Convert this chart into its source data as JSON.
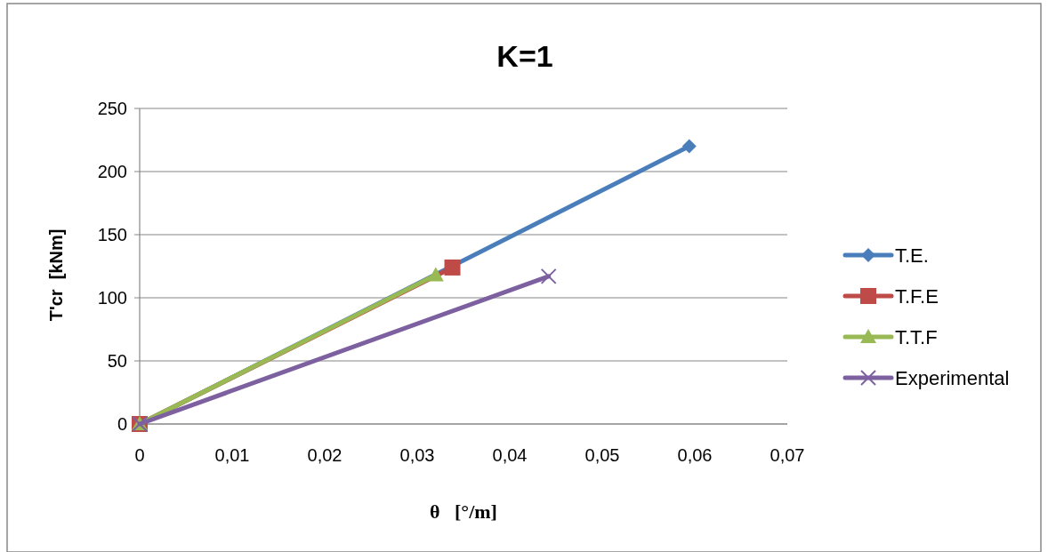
{
  "chart_data": {
    "type": "line",
    "title": "K=1",
    "xlabel": "θ   [°/m]",
    "ylabel": "T'cr  [kNm]",
    "xlim": [
      0,
      0.07
    ],
    "xticks": [
      0,
      {
        "value": 0.01,
        "label": "0,01"
      },
      {
        "value": 0.02,
        "label": "0,02"
      },
      {
        "value": 0.03,
        "label": "0,03"
      },
      {
        "value": 0.04,
        "label": "0,04"
      },
      {
        "value": 0.05,
        "label": "0,05"
      },
      {
        "value": 0.06,
        "label": "0,06"
      },
      {
        "value": 0.07,
        "label": "0,07"
      }
    ],
    "ylim": [
      0,
      250
    ],
    "yticks": [
      0,
      50,
      100,
      150,
      200,
      250
    ],
    "grid": "y",
    "legend": "right",
    "series": [
      {
        "name": "T.E.",
        "color": "#4a7ebb",
        "marker": "diamond",
        "x": [
          0,
          0.0594
        ],
        "values": [
          0,
          220
        ]
      },
      {
        "name": "T.F.E",
        "color": "#be4b48",
        "marker": "square",
        "x": [
          0,
          0.0338
        ],
        "values": [
          0,
          124
        ]
      },
      {
        "name": "T.T.F",
        "color": "#98b954",
        "marker": "triangle",
        "x": [
          0,
          0.032
        ],
        "values": [
          0,
          118
        ]
      },
      {
        "name": "Experimental",
        "color": "#7d60a0",
        "marker": "cross",
        "x": [
          0,
          0.0442
        ],
        "values": [
          0,
          117
        ]
      }
    ]
  }
}
